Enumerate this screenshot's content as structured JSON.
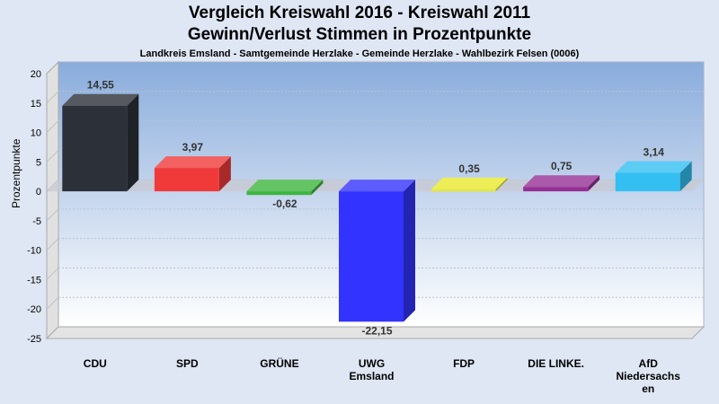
{
  "title_line1": "Vergleich Kreiswahl 2016 - Kreiswahl 2011",
  "title_line2": "Gewinn/Verlust Stimmen in Prozentpunkte",
  "subtitle": "Landkreis Emsland - Samtgemeinde Herzlake - Gemeinde Herzlake - Wahlbezirk Felsen (0006)",
  "chart_data": {
    "type": "bar",
    "ylabel": "Prozentpunkte",
    "ylim": [
      -25,
      20
    ],
    "yticks": [
      20,
      15,
      10,
      5,
      0,
      -5,
      -10,
      -15,
      -20,
      -25
    ],
    "grid": true,
    "categories": [
      [
        "CDU"
      ],
      [
        "SPD"
      ],
      [
        "GRÜNE"
      ],
      [
        "UWG",
        "Emsland"
      ],
      [
        "FDP"
      ],
      [
        "DIE LINKE."
      ],
      [
        "AfD",
        "Niedersachs",
        "en"
      ]
    ],
    "values": [
      14.55,
      3.97,
      -0.62,
      -22.15,
      0.35,
      0.75,
      3.14
    ],
    "value_labels": [
      "14,55",
      "3,97",
      "-0,62",
      "-22,15",
      "0,35",
      "0,75",
      "3,14"
    ],
    "colors": [
      "#2c3038",
      "#f03a3a",
      "#3db53d",
      "#3333ff",
      "#e8e82e",
      "#963096",
      "#33bff2"
    ]
  }
}
